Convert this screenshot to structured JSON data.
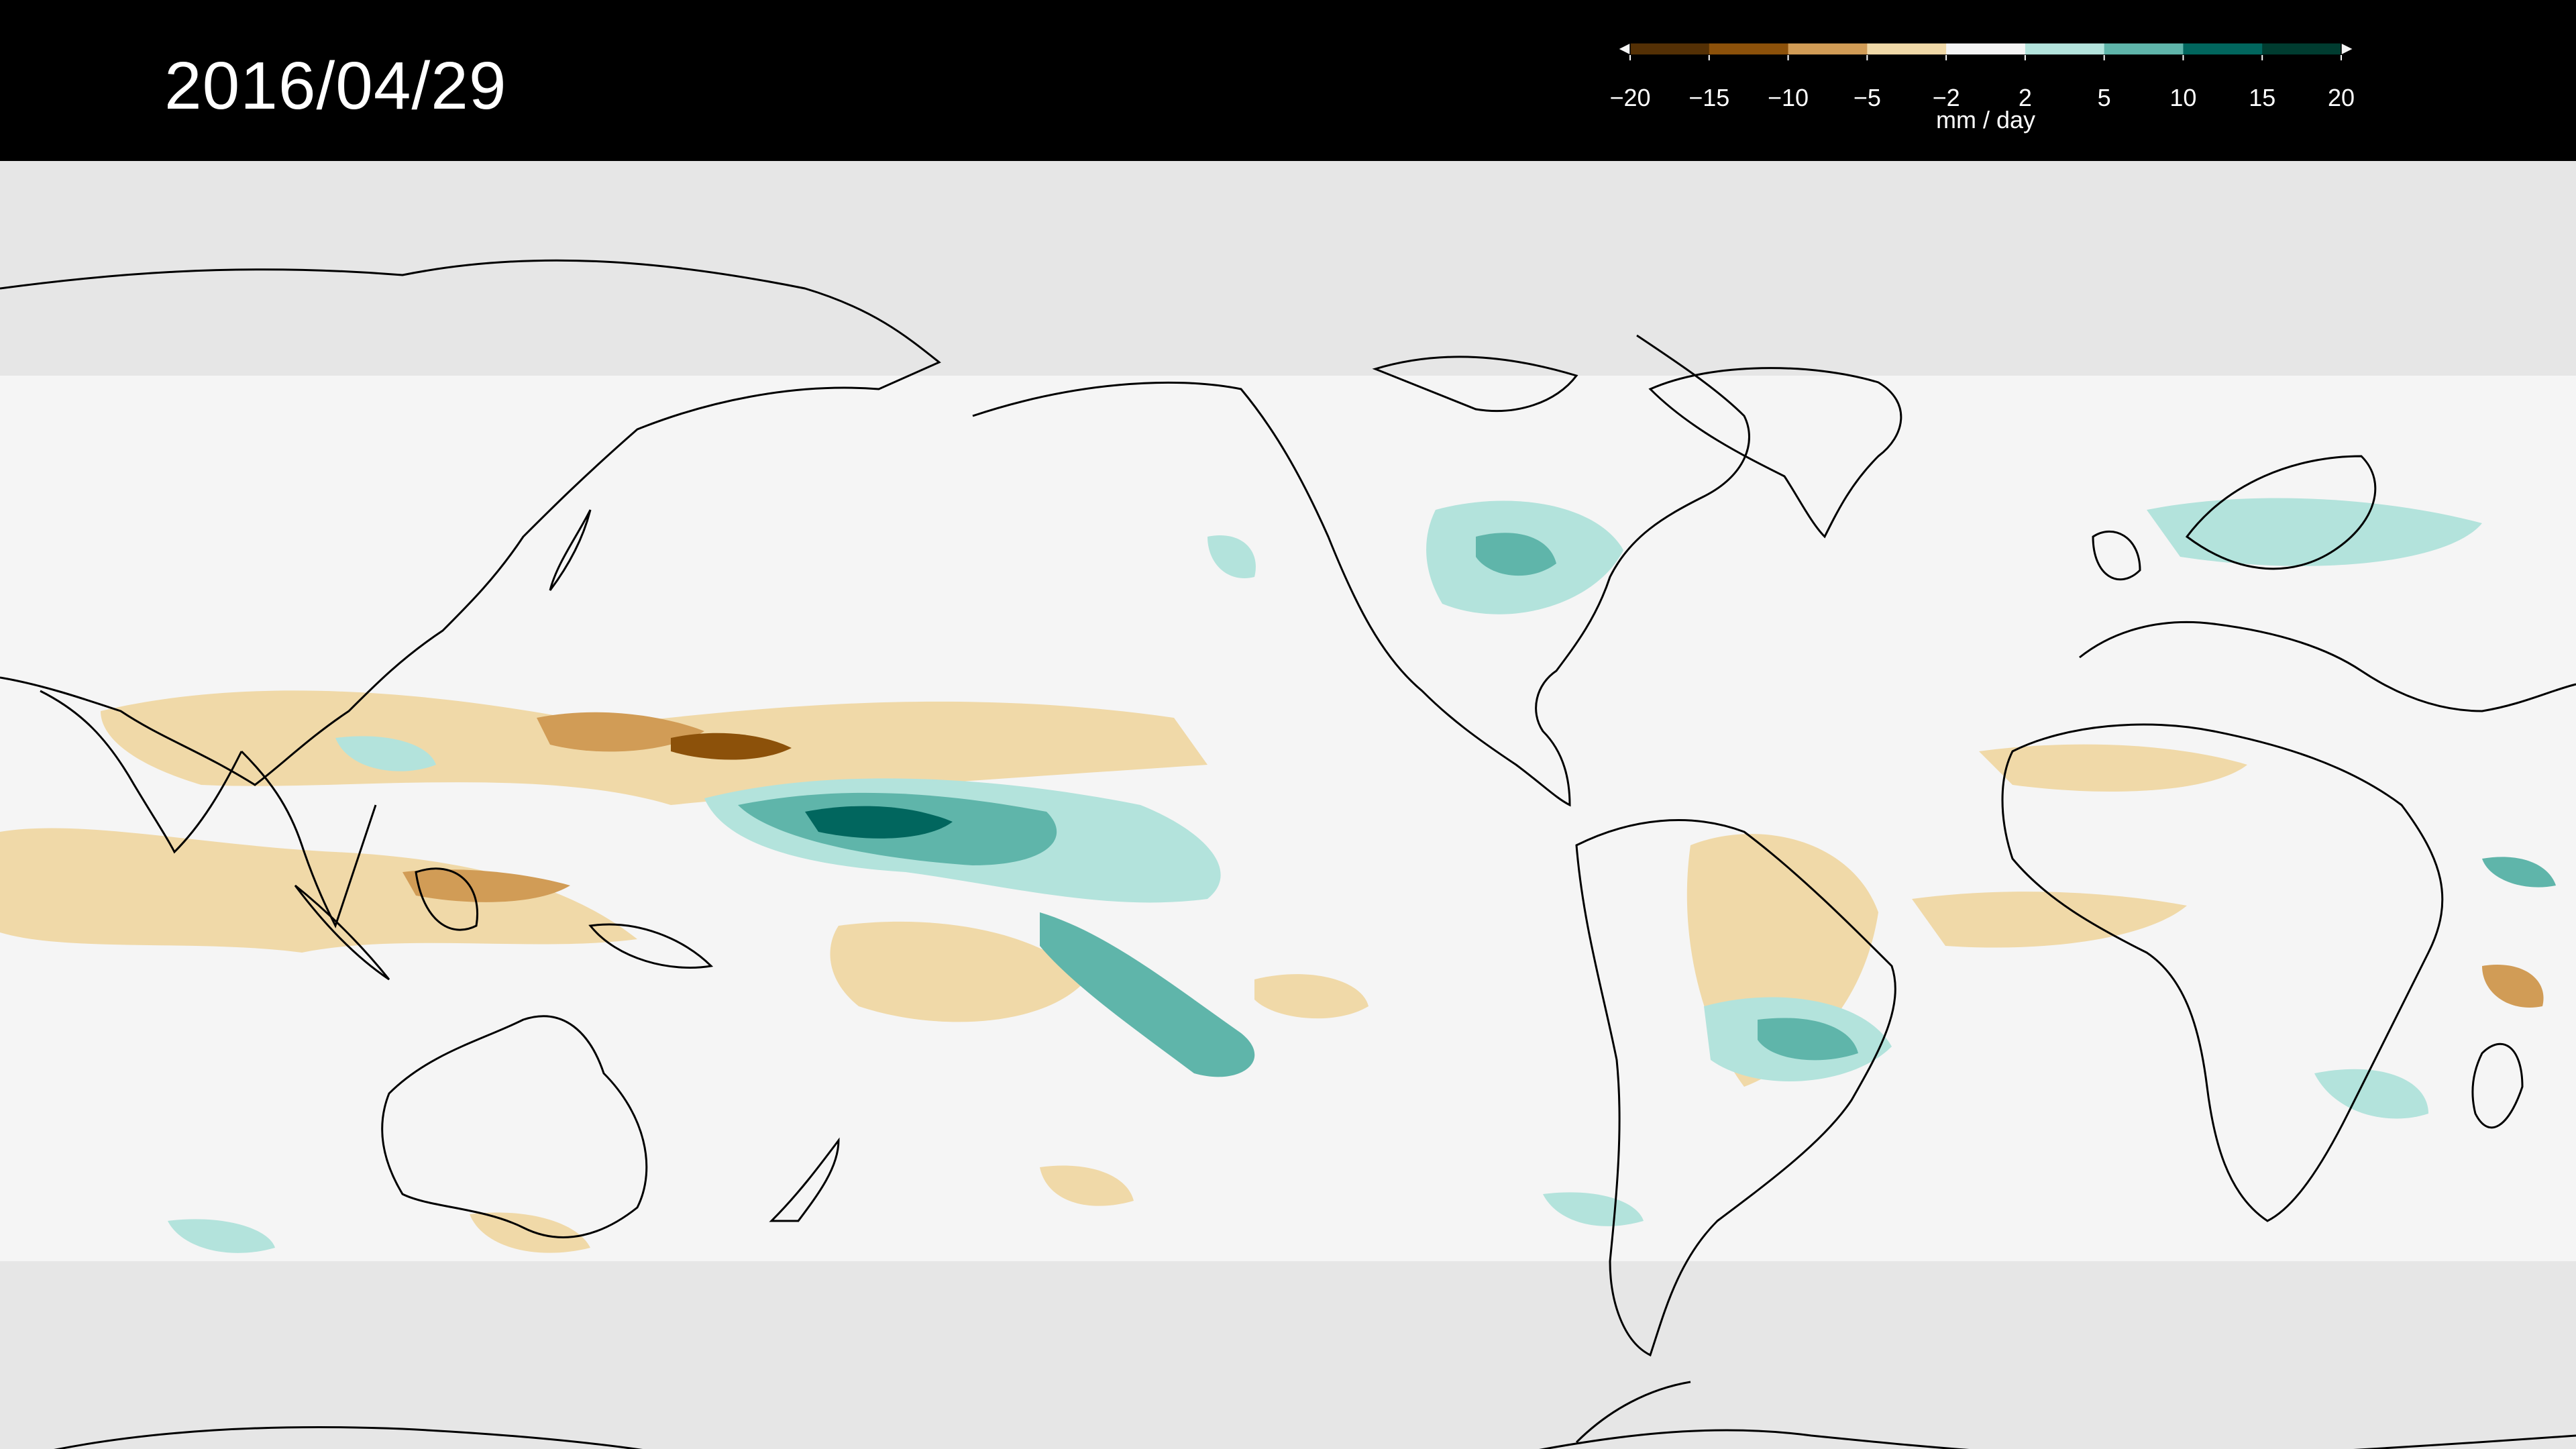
{
  "title": {
    "date": "2016/04/29"
  },
  "legend": {
    "unit_label": "mm / day",
    "tick_labels": [
      "−20",
      "−15",
      "−10",
      "−5",
      "−2",
      "2",
      "5",
      "10",
      "15",
      "20"
    ],
    "colors": [
      "#543005",
      "#8c510a",
      "#d19c56",
      "#f0d9a8",
      "#f5f5f5",
      "#b3e3dc",
      "#5fb5aa",
      "#01665e",
      "#003c30"
    ],
    "extend_low_color": "#f5f5f5",
    "extend_high_color": "#f5f5f5"
  },
  "map": {
    "projection": "equirectangular",
    "ocean_background_color": "#f5f5f5",
    "no_data_color": "#e6e6e6",
    "coastline_color": "#000000"
  }
}
